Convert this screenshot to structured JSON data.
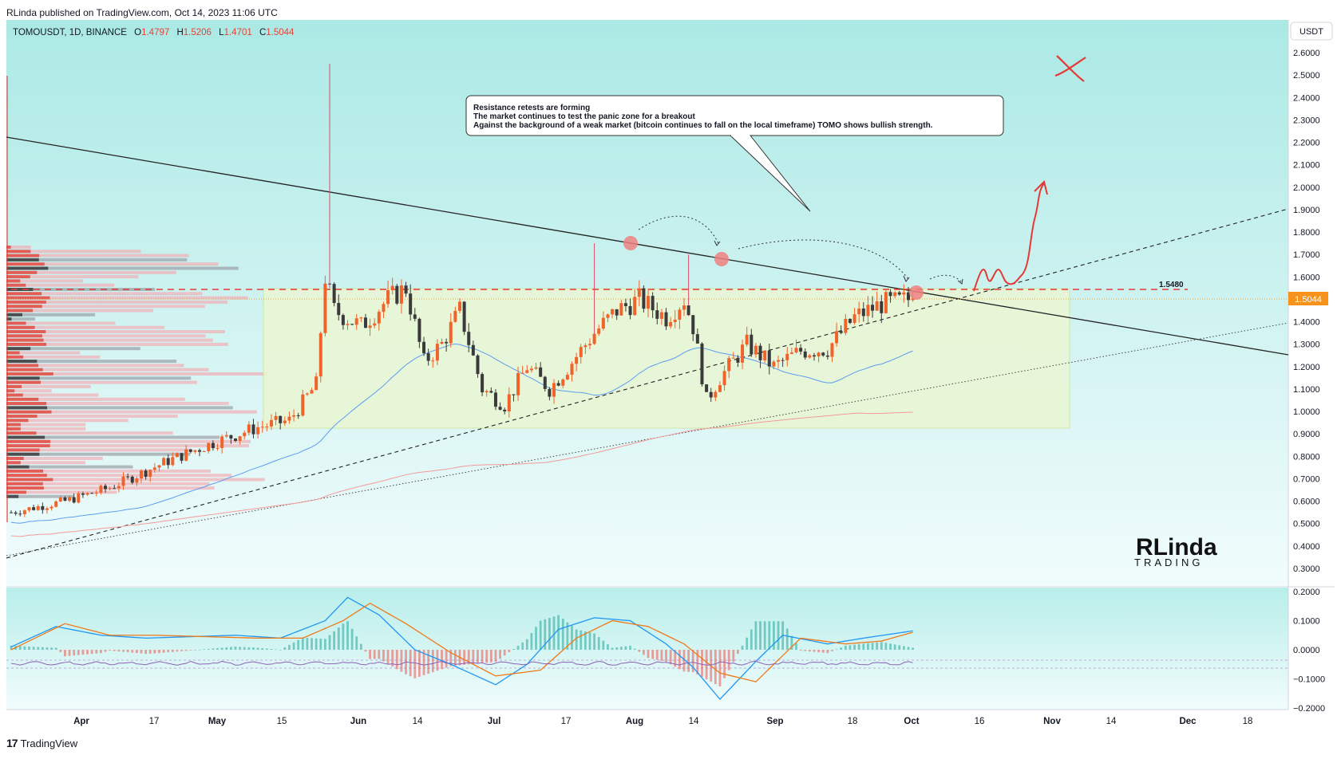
{
  "publisher_line": "RLinda published on TradingView.com, Oct 14, 2023 11:06 UTC",
  "symbol": {
    "name": "TOMOUSDT, 1D, BINANCE",
    "o_label": "O",
    "o": "1.4797",
    "h_label": "H",
    "h": "1.5206",
    "l_label": "L",
    "l": "1.4701",
    "c_label": "C",
    "c": "1.5044"
  },
  "currency": "USDT",
  "current_price": "1.5044",
  "resistance_label": "1.5480",
  "annotation": {
    "line1": "Resistance retests are forming",
    "line2": "The market continues to test the panic zone for a breakout",
    "line3": "Against the background of a weak market (bitcoin continues to fall on the local timeframe) TOMO shows bullish strength."
  },
  "watermark": {
    "top": "RLinda",
    "bottom": "TRADING"
  },
  "footer": "TradingView",
  "colors": {
    "up": "#f0632a",
    "down": "#3a3a3a",
    "resistance": "#e53935",
    "zone": "#e8f5d0",
    "macd": "#2196f3",
    "signal": "#ef7a1a",
    "rsi": "#9c6cc0",
    "bg_top": "#b2ece9",
    "bg_bottom": "#eefbfb"
  },
  "chart_data": [
    {
      "type": "candlestick",
      "title": "",
      "ylim": [
        0.3,
        2.65
      ],
      "y_scale": "linear",
      "x_labels": [
        "Apr",
        "17",
        "May",
        "15",
        "Jun",
        "14",
        "Jul",
        "17",
        "Aug",
        "14",
        "Sep",
        "18",
        "Oct",
        "16",
        "Nov",
        "14",
        "Dec",
        "18"
      ],
      "y_ticks": [
        "2.6000",
        "2.5000",
        "2.4000",
        "2.3000",
        "2.2000",
        "2.1000",
        "2.0000",
        "1.9000",
        "1.8000",
        "1.7000",
        "1.6000",
        "1.5000",
        "1.4000",
        "1.3000",
        "1.2000",
        "1.1000",
        "1.0000",
        "0.9000",
        "0.8000",
        "0.7000",
        "0.6000",
        "0.5000",
        "0.4000",
        "0.3000"
      ],
      "resistance_level": 1.548,
      "current_price": 1.5044,
      "close_waypoints": [
        [
          0,
          0.55
        ],
        [
          12,
          0.6
        ],
        [
          22,
          0.66
        ],
        [
          35,
          0.78
        ],
        [
          45,
          0.86
        ],
        [
          55,
          0.93
        ],
        [
          62,
          0.96
        ],
        [
          68,
          1.12
        ],
        [
          70,
          1.6
        ],
        [
          72,
          1.45
        ],
        [
          78,
          1.38
        ],
        [
          84,
          1.5
        ],
        [
          88,
          1.55
        ],
        [
          92,
          1.22
        ],
        [
          96,
          1.3
        ],
        [
          100,
          1.45
        ],
        [
          105,
          1.1
        ],
        [
          110,
          1.03
        ],
        [
          115,
          1.2
        ],
        [
          120,
          1.1
        ],
        [
          125,
          1.22
        ],
        [
          130,
          1.35
        ],
        [
          135,
          1.45
        ],
        [
          140,
          1.5
        ],
        [
          146,
          1.42
        ],
        [
          150,
          1.5
        ],
        [
          152,
          1.38
        ],
        [
          155,
          1.05
        ],
        [
          158,
          1.15
        ],
        [
          164,
          1.3
        ],
        [
          170,
          1.2
        ],
        [
          176,
          1.27
        ],
        [
          182,
          1.28
        ],
        [
          188,
          1.42
        ],
        [
          194,
          1.48
        ],
        [
          198,
          1.49
        ],
        [
          201,
          1.5044
        ]
      ],
      "wick_highs": [
        [
          71,
          2.55
        ],
        [
          130,
          1.75
        ],
        [
          151,
          1.7
        ]
      ],
      "projection_targets": [
        1.6,
        1.55,
        1.98
      ]
    },
    {
      "type": "line",
      "title": "",
      "ylim": [
        -0.2,
        0.2
      ],
      "y_ticks": [
        "0.2000",
        "0.1000",
        "0.0000",
        "−0.1000",
        "−0.2000"
      ],
      "series": [
        {
          "name": "",
          "waypoints": [
            [
              0,
              0.01
            ],
            [
              10,
              0.08
            ],
            [
              20,
              0.05
            ],
            [
              30,
              0.04
            ],
            [
              50,
              0.05
            ],
            [
              60,
              0.04
            ],
            [
              70,
              0.1
            ],
            [
              75,
              0.18
            ],
            [
              82,
              0.12
            ],
            [
              90,
              0.0
            ],
            [
              98,
              -0.05
            ],
            [
              108,
              -0.12
            ],
            [
              115,
              -0.05
            ],
            [
              122,
              0.07
            ],
            [
              130,
              0.11
            ],
            [
              138,
              0.1
            ],
            [
              146,
              0.02
            ],
            [
              152,
              -0.06
            ],
            [
              158,
              -0.17
            ],
            [
              166,
              -0.04
            ],
            [
              172,
              0.05
            ],
            [
              182,
              0.02
            ],
            [
              190,
              0.04
            ],
            [
              201,
              0.065
            ]
          ]
        },
        {
          "name": "",
          "waypoints": [
            [
              0,
              0.0
            ],
            [
              12,
              0.09
            ],
            [
              22,
              0.05
            ],
            [
              32,
              0.05
            ],
            [
              55,
              0.04
            ],
            [
              65,
              0.04
            ],
            [
              74,
              0.1
            ],
            [
              80,
              0.16
            ],
            [
              88,
              0.09
            ],
            [
              98,
              -0.01
            ],
            [
              108,
              -0.09
            ],
            [
              118,
              -0.07
            ],
            [
              126,
              0.04
            ],
            [
              134,
              0.1
            ],
            [
              142,
              0.08
            ],
            [
              150,
              0.02
            ],
            [
              158,
              -0.08
            ],
            [
              166,
              -0.11
            ],
            [
              176,
              0.04
            ],
            [
              186,
              0.02
            ],
            [
              194,
              0.03
            ],
            [
              201,
              0.06
            ]
          ]
        }
      ]
    }
  ]
}
